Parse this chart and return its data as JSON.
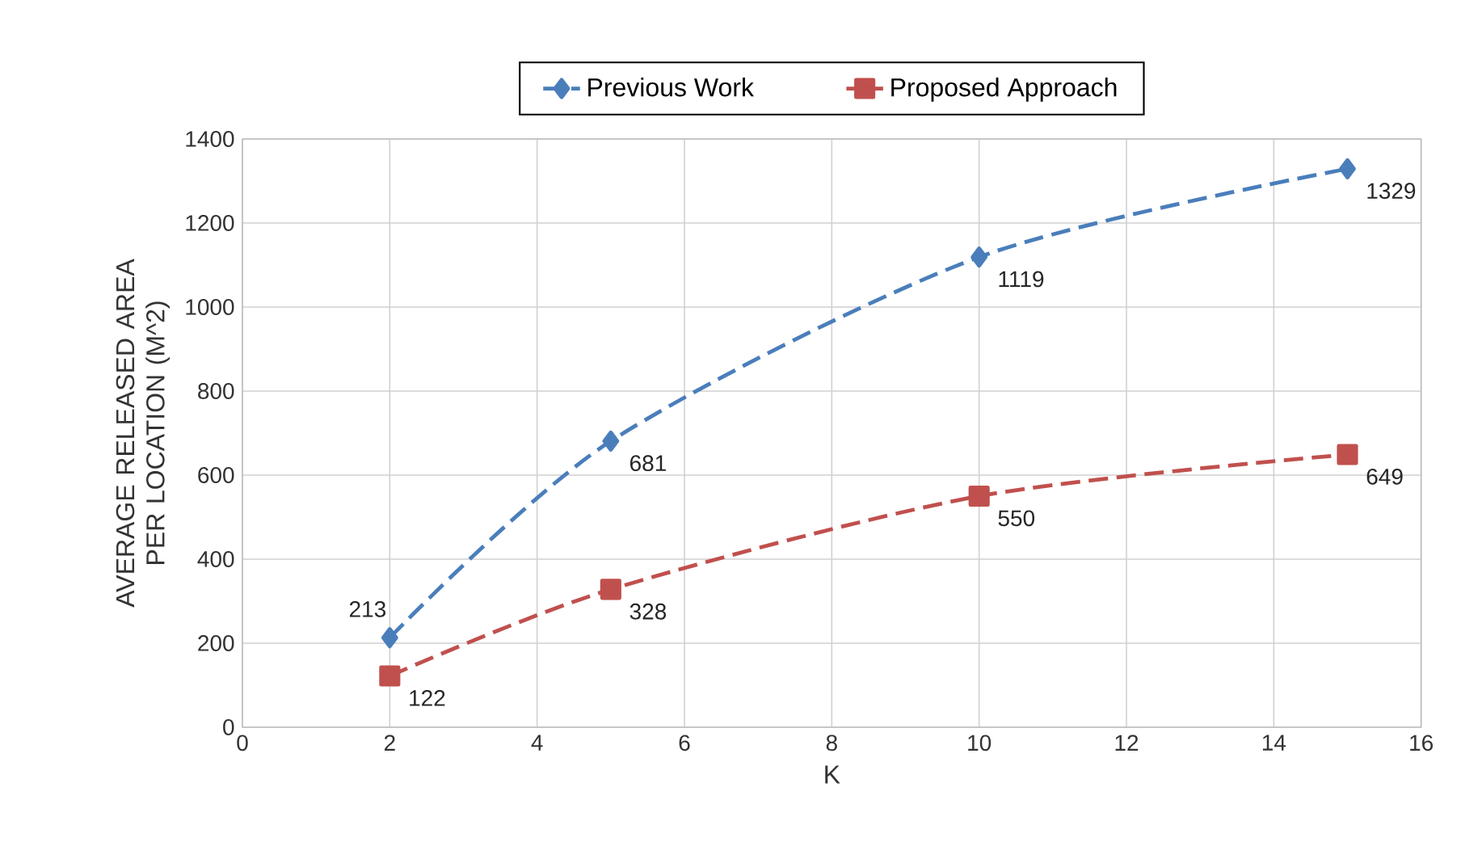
{
  "chart_data": {
    "type": "line",
    "xlabel": "K",
    "ylabel": "AVERAGE RELEASED AREA PER LOCATION (M^2)",
    "x": [
      2,
      5,
      10,
      15
    ],
    "series": [
      {
        "name": "Previous Work",
        "color": "#4a7ebb",
        "marker": "diamond",
        "line_style": "dashed",
        "values": [
          213,
          681,
          1119,
          1329
        ]
      },
      {
        "name": "Proposed Approach",
        "color": "#c0504d",
        "marker": "square",
        "line_style": "dashed",
        "values": [
          122,
          328,
          550,
          649
        ]
      }
    ],
    "xlim": [
      0,
      16
    ],
    "xticks": [
      0,
      2,
      4,
      6,
      8,
      10,
      12,
      14,
      16
    ],
    "ylim": [
      0,
      1400
    ],
    "yticks": [
      0,
      200,
      400,
      600,
      800,
      1000,
      1200,
      1400
    ],
    "grid": true,
    "legend": "top",
    "data_labels": true
  }
}
